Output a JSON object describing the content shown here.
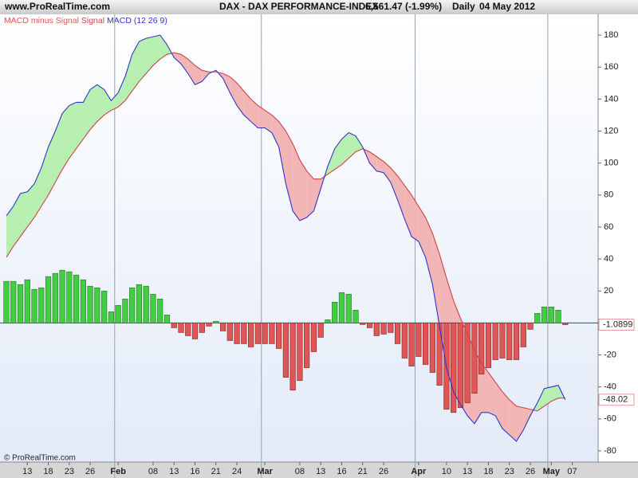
{
  "chart_data": {
    "type": "line",
    "site": "www.ProRealTime.com",
    "title": "DAX - DAX PERFORMANCE-INDEX",
    "price": "6,561.47 (-1.99%)",
    "period": "Daily",
    "date": "04 May 2012",
    "footer": "© ProRealTime.com",
    "categories": [
      null,
      null,
      null,
      "13",
      null,
      null,
      "18",
      null,
      null,
      "23",
      null,
      null,
      "26",
      null,
      null,
      null,
      "Feb",
      null,
      null,
      null,
      null,
      "08",
      null,
      null,
      "13",
      null,
      null,
      "16",
      null,
      null,
      "21",
      null,
      null,
      "24",
      null,
      null,
      null,
      "Mar",
      null,
      null,
      null,
      null,
      "08",
      null,
      null,
      "13",
      null,
      null,
      "16",
      null,
      null,
      "21",
      null,
      null,
      "26",
      null,
      null,
      null,
      null,
      "Apr",
      null,
      null,
      null,
      "10",
      null,
      null,
      "13",
      null,
      null,
      "18",
      null,
      null,
      "23",
      null,
      null,
      "26",
      null,
      null,
      "May",
      null,
      null,
      "07"
    ],
    "series": [
      {
        "name": "MACD minus Signal",
        "type": "bar",
        "color": "#e05555",
        "positive_color": "#44cc44",
        "values": [
          26,
          26,
          24,
          27,
          21,
          22,
          29,
          31,
          33,
          32,
          30,
          27,
          23,
          22,
          20,
          7,
          11,
          15,
          22,
          24,
          23,
          18,
          15,
          5,
          -3,
          -6,
          -8,
          -10,
          -6,
          -2,
          1,
          -5,
          -11,
          -13,
          -13,
          -15,
          -13,
          -13,
          -13,
          -16,
          -34,
          -42,
          -36,
          -28,
          -18,
          -9,
          2,
          13,
          19,
          18,
          8,
          -1,
          -3,
          -8,
          -7,
          -6,
          -13,
          -22,
          -27,
          -21,
          -26,
          -31,
          -39,
          -54,
          -56,
          -53,
          -50,
          -44,
          -32,
          -28,
          -23,
          -22,
          -23,
          -23,
          -15,
          -4,
          6,
          10,
          10,
          8,
          -1.0899,
          null
        ]
      },
      {
        "name": "Signal",
        "type": "line",
        "color": "#cc4444",
        "values": [
          41,
          48,
          54,
          60,
          66,
          73,
          80,
          88,
          96,
          103,
          109,
          115,
          121,
          126,
          130,
          133,
          135,
          139,
          145,
          151,
          156,
          161,
          165,
          168,
          169,
          168,
          165,
          161,
          158,
          157,
          157,
          156,
          154,
          150,
          145,
          140,
          136,
          133,
          130,
          126,
          120,
          112,
          102,
          95,
          90,
          90,
          93,
          96,
          99,
          103,
          107,
          109,
          107,
          104,
          101,
          97,
          92,
          86,
          80,
          73,
          66,
          56,
          43,
          28,
          14,
          3,
          -7,
          -17,
          -25,
          -31,
          -37,
          -43,
          -48,
          -52,
          -53,
          -54,
          -55,
          -52,
          -49,
          -47,
          -46.93,
          null
        ]
      },
      {
        "name": "MACD (12 26 9)",
        "type": "line",
        "color": "#3333cc",
        "values": [
          67,
          73,
          81,
          82,
          87,
          97,
          110,
          120,
          131,
          136,
          138,
          138,
          146,
          149,
          146,
          139,
          144,
          154,
          168,
          176,
          178,
          179,
          180,
          174,
          166,
          162,
          156,
          149,
          151,
          156,
          158,
          153,
          144,
          136,
          130,
          126,
          122,
          122,
          119,
          110,
          87,
          70,
          64,
          66,
          70,
          84,
          98,
          109,
          115,
          119,
          117,
          110,
          100,
          95,
          94,
          88,
          77,
          65,
          54,
          51,
          41,
          24,
          -2,
          -28,
          -43,
          -51,
          -58,
          -63,
          -56,
          -56,
          -58,
          -66,
          -70,
          -74,
          -67,
          -58,
          -50,
          -41,
          -40,
          -39,
          -48.02,
          null
        ]
      }
    ],
    "fill_colors": {
      "above": "#b6efb0",
      "below": "#f1b5b5"
    },
    "ylim": [
      -87,
      193
    ],
    "yticks": [
      -80,
      -60,
      -40,
      -20,
      0,
      20,
      40,
      60,
      80,
      100,
      120,
      140,
      160,
      180
    ]
  }
}
